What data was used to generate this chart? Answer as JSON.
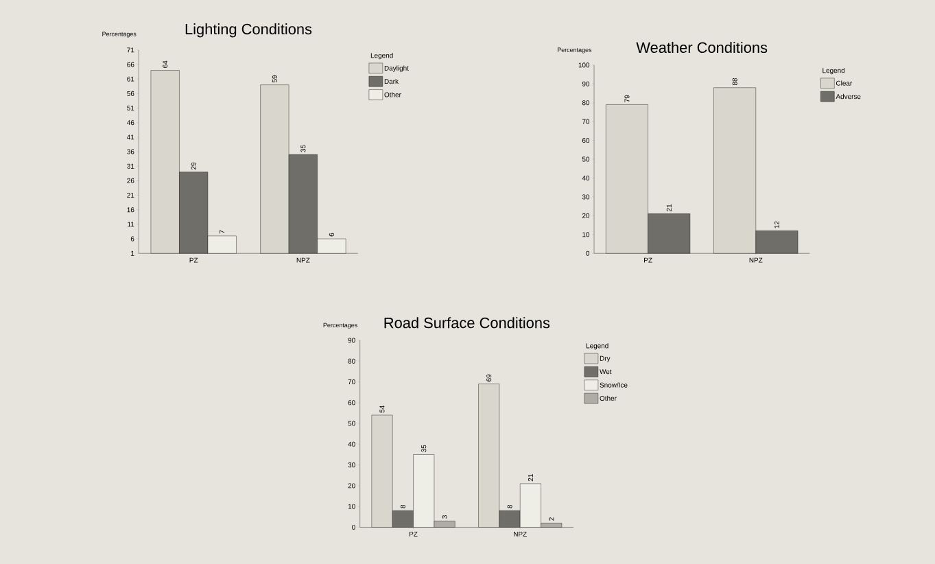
{
  "chart_data": [
    {
      "type": "bar",
      "title": "Lighting Conditions",
      "ylabel": "Percentages",
      "legend_title": "Legend",
      "legend": "top right",
      "data_labels": true,
      "categories": [
        "PZ",
        "NPZ"
      ],
      "ylim": [
        1,
        71
      ],
      "yticks": [
        1,
        6,
        11,
        16,
        21,
        26,
        31,
        36,
        41,
        46,
        51,
        56,
        61,
        66,
        71
      ],
      "series": [
        {
          "name": "Daylight",
          "color": "#d9d7cd",
          "values": [
            64,
            59
          ]
        },
        {
          "name": "Dark",
          "color": "#6f6e69",
          "values": [
            29,
            35
          ]
        },
        {
          "name": "Other",
          "color": "#eeede6",
          "values": [
            7,
            6
          ]
        }
      ]
    },
    {
      "type": "bar",
      "title": "Weather Conditions",
      "ylabel": "Percentages",
      "legend_title": "Legend",
      "legend": "top right",
      "data_labels": true,
      "categories": [
        "PZ",
        "NPZ"
      ],
      "ylim": [
        0,
        100
      ],
      "yticks": [
        0,
        10,
        20,
        30,
        40,
        50,
        60,
        70,
        80,
        90,
        100
      ],
      "series": [
        {
          "name": "Clear",
          "color": "#d9d7cd",
          "values": [
            79,
            88
          ]
        },
        {
          "name": "Adverse",
          "color": "#6f6e69",
          "values": [
            21,
            12
          ]
        }
      ]
    },
    {
      "type": "bar",
      "title": "Road Surface Conditions",
      "ylabel": "Percentages",
      "legend_title": "Legend",
      "legend": "top right",
      "data_labels": true,
      "categories": [
        "PZ",
        "NPZ"
      ],
      "ylim": [
        0,
        90
      ],
      "yticks": [
        0,
        10,
        20,
        30,
        40,
        50,
        60,
        70,
        80,
        90
      ],
      "series": [
        {
          "name": "Dry",
          "color": "#d9d7cd",
          "values": [
            54,
            69
          ]
        },
        {
          "name": "Wet",
          "color": "#6f6e69",
          "values": [
            8,
            8
          ]
        },
        {
          "name": "Snow/Ice",
          "color": "#eeede6",
          "values": [
            35,
            21
          ]
        },
        {
          "name": "Other",
          "color": "#aeaca4",
          "values": [
            3,
            2
          ]
        }
      ]
    }
  ]
}
